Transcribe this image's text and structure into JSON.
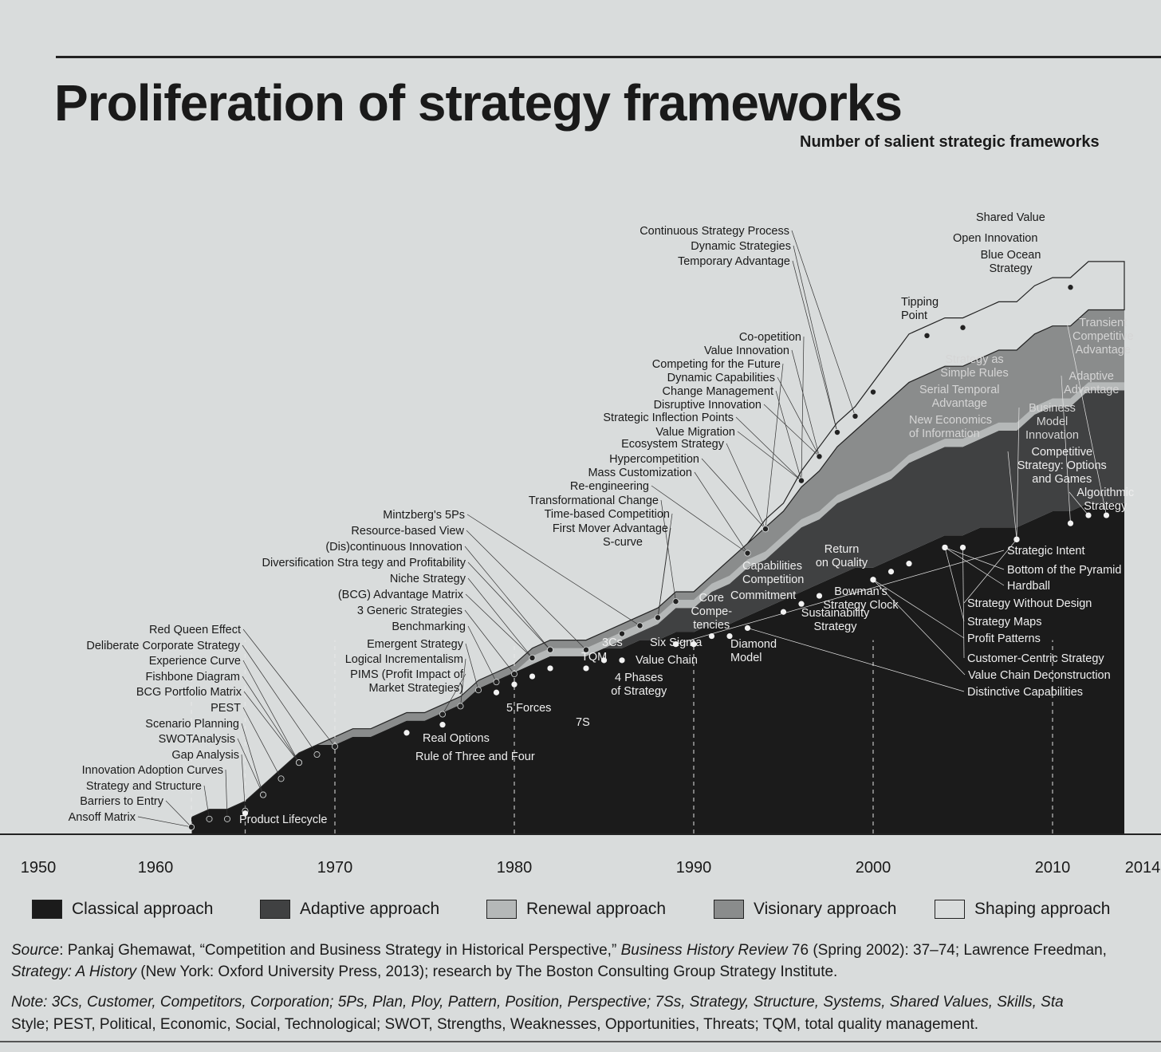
{
  "title": "Proliferation of strategy frameworks",
  "subtitle": "Number of salient strategic frameworks",
  "colors": {
    "classical": "#1b1b1b",
    "adaptive": "#404142",
    "renewal": "#b5b8b8",
    "visionary": "#8a8c8c",
    "shaping": "#d9dcdc",
    "background": "#d9dcdc"
  },
  "legend": [
    {
      "label": "Classical approach",
      "color": "#1b1b1b"
    },
    {
      "label": "Adaptive approach",
      "color": "#404142"
    },
    {
      "label": "Renewal approach",
      "color": "#b5b8b8"
    },
    {
      "label": "Visionary approach",
      "color": "#8a8c8c"
    },
    {
      "label": "Shaping approach",
      "color": "#d9dcdc"
    }
  ],
  "source_label": "Source",
  "source_text1": ": Pankaj Ghemawat, “Competition and Business Strategy in Historical Perspective,” ",
  "source_journal": "Business History Review",
  "source_text2": " 76 (Spring 2002): 37–74; Lawrence Freedman, ",
  "source_book": "Strategy: A History",
  "source_text3": " (New York: Oxford University Press, 2013); research by The Boston Consulting Group Strategy Institute.",
  "note_label": "Note:",
  "note_line1": " 3Cs, Customer, Competitors, Corporation; 5Ps, Plan, Ploy, Pattern, Position, Perspective; 7Ss, Strategy, Structure, Systems, Shared Values, Skills, Sta",
  "note_line2": "Style; PEST, Political, Economic, Social, Technological; SWOT, Strengths, Weaknesses, Opportunities, Threats; TQM, total quality management.",
  "chart_data": {
    "type": "area",
    "stacked": true,
    "x_ticks": [
      "1950",
      "1960",
      "1970",
      "1980",
      "1990",
      "2000",
      "2010",
      "2014"
    ],
    "decade_markers": [
      1962,
      1965,
      1970,
      1980,
      1990,
      2000,
      2010
    ],
    "years": [
      1962,
      1963,
      1964,
      1965,
      1966,
      1967,
      1968,
      1969,
      1970,
      1971,
      1972,
      1973,
      1974,
      1975,
      1976,
      1977,
      1978,
      1979,
      1980,
      1981,
      1982,
      1983,
      1984,
      1985,
      1986,
      1987,
      1988,
      1989,
      1990,
      1991,
      1992,
      1993,
      1994,
      1995,
      1996,
      1997,
      1998,
      1999,
      2000,
      2001,
      2002,
      2003,
      2004,
      2005,
      2006,
      2007,
      2008,
      2009,
      2010,
      2011,
      2012,
      2013,
      2014
    ],
    "series": [
      {
        "name": "Classical approach",
        "values": [
          2,
          3,
          3,
          4,
          6,
          8,
          10,
          11,
          11,
          12,
          12,
          13,
          14,
          14,
          15,
          16,
          18,
          19,
          20,
          21,
          22,
          22,
          22,
          23,
          23,
          24,
          24,
          25,
          25,
          26,
          26,
          27,
          28,
          29,
          30,
          31,
          32,
          33,
          33,
          34,
          35,
          36,
          37,
          37,
          38,
          38,
          38,
          39,
          40,
          40,
          41,
          41,
          41
        ]
      },
      {
        "name": "Adaptive approach",
        "values": [
          0,
          0,
          0,
          0,
          0,
          0,
          0,
          0,
          0,
          0,
          0,
          0,
          0,
          0,
          0,
          0,
          0,
          0,
          0,
          0,
          0,
          0,
          0,
          0,
          1,
          1,
          2,
          3,
          3,
          4,
          5,
          6,
          6,
          7,
          8,
          8,
          9,
          9,
          10,
          10,
          11,
          11,
          11,
          11,
          11,
          12,
          12,
          13,
          13,
          13,
          14,
          14,
          14
        ]
      },
      {
        "name": "Renewal approach",
        "values": [
          0,
          0,
          0,
          0,
          0,
          0,
          0,
          0,
          0,
          0,
          0,
          0,
          0,
          0,
          0,
          0,
          0,
          0,
          0,
          1,
          1,
          1,
          1,
          1,
          1,
          1,
          1,
          1,
          1,
          1,
          1,
          1,
          1,
          1,
          1,
          1,
          1,
          1,
          1,
          1,
          1,
          1,
          1,
          1,
          1,
          1,
          1,
          1,
          1,
          1,
          1,
          1,
          1
        ]
      },
      {
        "name": "Visionary approach",
        "values": [
          0,
          0,
          0,
          0,
          0,
          0,
          0,
          0,
          1,
          1,
          1,
          1,
          1,
          1,
          1,
          1,
          1,
          1,
          1,
          1,
          1,
          1,
          1,
          1,
          1,
          1,
          1,
          1,
          1,
          1,
          2,
          2,
          3,
          3,
          4,
          5,
          6,
          7,
          8,
          9,
          9,
          9,
          9,
          9,
          9,
          9,
          9,
          9,
          9,
          9,
          9,
          9,
          9
        ]
      },
      {
        "name": "Shaping approach",
        "values": [
          0,
          0,
          0,
          0,
          0,
          0,
          0,
          0,
          0,
          0,
          0,
          0,
          0,
          0,
          0,
          0,
          0,
          0,
          0,
          0,
          0,
          0,
          0,
          0,
          0,
          0,
          0,
          0,
          0,
          0,
          0,
          0,
          1,
          1,
          2,
          3,
          3,
          3,
          4,
          5,
          6,
          6,
          6,
          6,
          6,
          6,
          6,
          6,
          6,
          6,
          6,
          6,
          6
        ]
      }
    ],
    "annotations": [
      {
        "label": "Ansoff Matrix",
        "year": 1962
      },
      {
        "label": "Barriers to Entry",
        "year": 1962
      },
      {
        "label": "Strategy and Structure",
        "year": 1963
      },
      {
        "label": "Innovation Adoption Curves",
        "year": 1964
      },
      {
        "label": "Gap Analysis",
        "year": 1965
      },
      {
        "label": "SWOTAnalysis",
        "year": 1966
      },
      {
        "label": "Scenario Planning",
        "year": 1966
      },
      {
        "label": "PEST",
        "year": 1967
      },
      {
        "label": "BCG Portfolio Matrix",
        "year": 1968
      },
      {
        "label": "Fishbone Diagram",
        "year": 1968
      },
      {
        "label": "Experience Curve",
        "year": 1968
      },
      {
        "label": "Deliberate Corporate Strategy",
        "year": 1969
      },
      {
        "label": "Red Queen Effect",
        "year": 1970
      },
      {
        "label": "Product Lifecycle",
        "year": 1965
      },
      {
        "label": "Real Options",
        "year": 1974
      },
      {
        "label": "Rule of Three and Four",
        "year": 1976
      },
      {
        "label": "PIMS (Profit Impact of Market Strategies)",
        "year": 1976
      },
      {
        "label": "Logical Incrementalism",
        "year": 1977
      },
      {
        "label": "Emergent Strategy",
        "year": 1978
      },
      {
        "label": "Benchmarking",
        "year": 1979
      },
      {
        "label": "3 Generic Strategies",
        "year": 1980
      },
      {
        "label": "(BCG) Advantage Matrix",
        "year": 1981
      },
      {
        "label": "Niche Strategy",
        "year": 1981
      },
      {
        "label": "Diversification Stra tegy and Profitability",
        "year": 1982
      },
      {
        "label": "(Dis)continuous Innovation",
        "year": 1982
      },
      {
        "label": "Resource-based View",
        "year": 1984
      },
      {
        "label": "Mintzberg's 5Ps",
        "year": 1987
      },
      {
        "label": "5 Forces",
        "year": 1979
      },
      {
        "label": "7S",
        "year": 1980
      },
      {
        "label": "TQM",
        "year": 1981
      },
      {
        "label": "3Cs",
        "year": 1982
      },
      {
        "label": "4 Phases of Strategy",
        "year": 1984
      },
      {
        "label": "Six Sigma",
        "year": 1986
      },
      {
        "label": "Value Chain",
        "year": 1985
      },
      {
        "label": "Core Competencies",
        "year": 1990
      },
      {
        "label": "Diamond Model",
        "year": 1990
      },
      {
        "label": "Capabilities Competition",
        "year": 1992
      },
      {
        "label": "Commitment",
        "year": 1991
      },
      {
        "label": "Return on Quality",
        "year": 1995
      },
      {
        "label": "Bowman's Strategy Clock",
        "year": 1996
      },
      {
        "label": "Sustainability Strategy",
        "year": 1997
      },
      {
        "label": "S-curve",
        "year": 1986
      },
      {
        "label": "First Mover Advantage",
        "year": 1988
      },
      {
        "label": "Time-based Competition",
        "year": 1988
      },
      {
        "label": "Transformational Change",
        "year": 1989
      },
      {
        "label": "Re-engineering",
        "year": 1993
      },
      {
        "label": "Mass Customization",
        "year": 1993
      },
      {
        "label": "Hypercompetition",
        "year": 1994
      },
      {
        "label": "Ecosystem Strategy",
        "year": 1994
      },
      {
        "label": "Value Migration",
        "year": 1996
      },
      {
        "label": "Strategic Inflection Points",
        "year": 1996
      },
      {
        "label": "Disruptive Innovation",
        "year": 1997
      },
      {
        "label": "Change Management",
        "year": 1996
      },
      {
        "label": "Dynamic Capabilities",
        "year": 1997
      },
      {
        "label": "Competing for the Future",
        "year": 1994
      },
      {
        "label": "Value Innovation",
        "year": 1997
      },
      {
        "label": "Co-opetition",
        "year": 1996
      },
      {
        "label": "Temporary Advantage",
        "year": 1998
      },
      {
        "label": "Dynamic Strategies",
        "year": 1998
      },
      {
        "label": "Continuous Strategy Process",
        "year": 1999
      },
      {
        "label": "Tipping Point",
        "year": 2000
      },
      {
        "label": "Open Innovation",
        "year": 2003
      },
      {
        "label": "Shared Value",
        "year": 2011
      },
      {
        "label": "Blue Ocean Strategy",
        "year": 2005
      },
      {
        "label": "Strategy as Simple Rules",
        "year": 2001
      },
      {
        "label": "Serial Temporal Advantage",
        "year": 2002
      },
      {
        "label": "New Economics of Information",
        "year": 2000
      },
      {
        "label": "Business Model Innovation",
        "year": 2008
      },
      {
        "label": "Transient Competitive Advantage",
        "year": 2013
      },
      {
        "label": "Adaptive Advantage",
        "year": 2011
      },
      {
        "label": "Competitive Strategy: Options and Games",
        "year": 2008
      },
      {
        "label": "Algorithmic Strategy",
        "year": 2012
      },
      {
        "label": "Strategic Intent",
        "year": 1989
      },
      {
        "label": "Bottom of the Pyramid",
        "year": 2004
      },
      {
        "label": "Hardball",
        "year": 2004
      },
      {
        "label": "Strategy Without Design",
        "year": 2008
      },
      {
        "label": "Strategy Maps",
        "year": 2004
      },
      {
        "label": "Profit Patterns",
        "year": 2000
      },
      {
        "label": "Customer-Centric Strategy",
        "year": 2005
      },
      {
        "label": "Value Chain Deconstruction",
        "year": 2000
      },
      {
        "label": "Distinctive Capabilities",
        "year": 1993
      }
    ]
  }
}
